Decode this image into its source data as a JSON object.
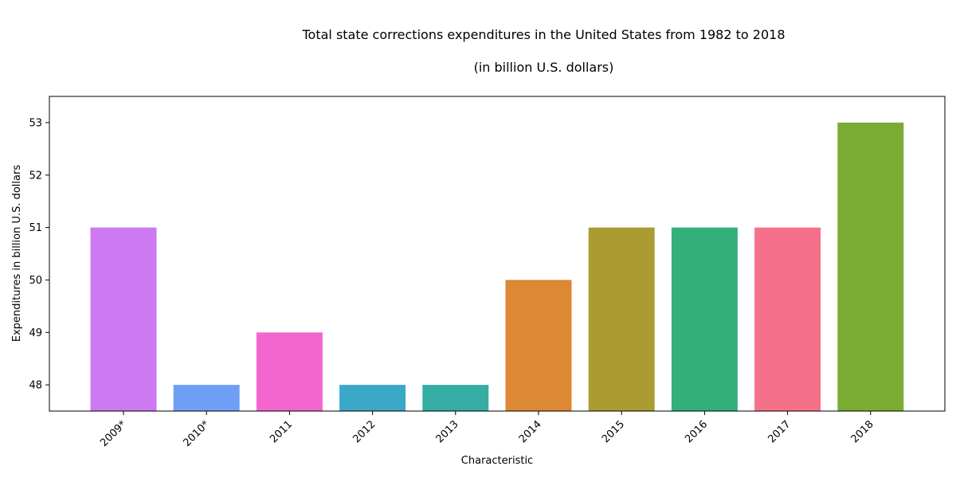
{
  "chart_data": {
    "type": "bar",
    "title": "Total state corrections expenditures in the United States from 1982 to 2018",
    "subtitle": "(in billion U.S. dollars)",
    "xlabel": "Characteristic",
    "ylabel": "Expenditures in billion U.S. dollars",
    "categories": [
      "2009*",
      "2010*",
      "2011",
      "2012",
      "2013",
      "2014",
      "2015",
      "2016",
      "2017",
      "2018"
    ],
    "values": [
      51,
      48,
      49,
      48,
      48,
      50,
      51,
      51,
      51,
      53
    ],
    "colors": [
      "#cc79f2",
      "#6f9ef5",
      "#f466cf",
      "#3aa8c6",
      "#36ada4",
      "#dd8833",
      "#ab9c32",
      "#33b07a",
      "#f57189",
      "#7aac33"
    ],
    "ylim": [
      47.5,
      53.5
    ],
    "yticks": [
      48,
      49,
      50,
      51,
      52,
      53
    ],
    "grid": false,
    "legend": "none"
  }
}
